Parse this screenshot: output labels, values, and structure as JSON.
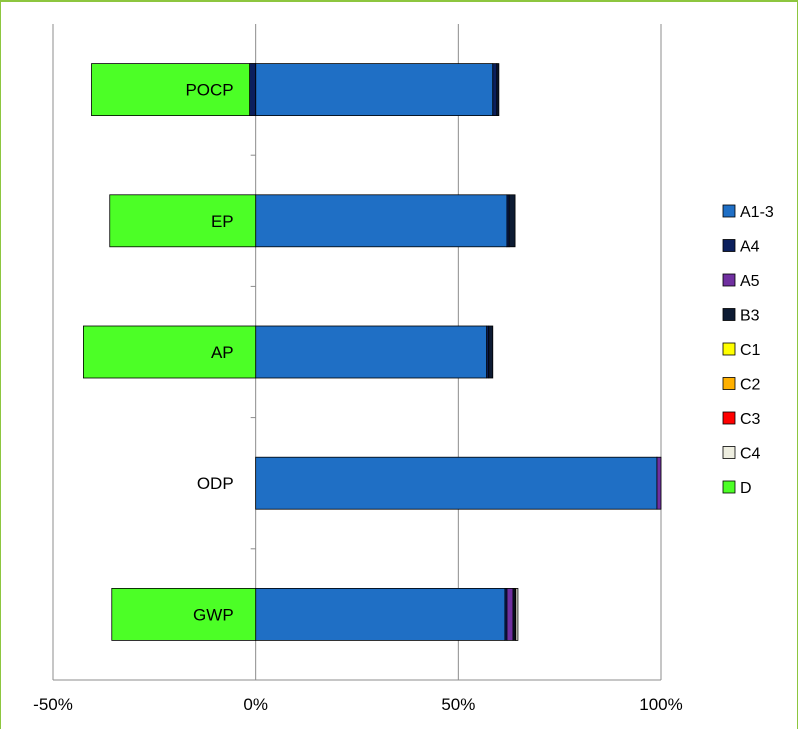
{
  "chart_data": {
    "type": "bar",
    "orientation": "horizontal",
    "stacked": true,
    "categories": [
      "POCP",
      "EP",
      "AP",
      "ODP",
      "GWP"
    ],
    "xlim": [
      -50,
      100
    ],
    "xticks": [
      "-50%",
      "0%",
      "50%",
      "100%"
    ],
    "xtick_values": [
      -50,
      0,
      50,
      100
    ],
    "grid": "vertical major gridlines",
    "legend_position": "right",
    "series": [
      {
        "name": "A1-3",
        "color": "#1f6fc5",
        "values": [
          58.5,
          62.0,
          57.0,
          99.0,
          61.5
        ]
      },
      {
        "name": "A4",
        "color": "#0b1f5c",
        "values": [
          1.0,
          0.5,
          0.5,
          0.0,
          0.5
        ]
      },
      {
        "name": "A5",
        "color": "#7030a0",
        "values": [
          0.0,
          0.0,
          0.0,
          1.0,
          1.5
        ]
      },
      {
        "name": "B3",
        "color": "#0d1b33",
        "values": [
          0.5,
          1.5,
          1.0,
          0.0,
          0.5
        ]
      },
      {
        "name": "C1",
        "color": "#ffff00",
        "values": [
          0.0,
          0.0,
          0.0,
          0.0,
          0.0
        ]
      },
      {
        "name": "C2",
        "color": "#ffb000",
        "values": [
          0.0,
          0.0,
          0.0,
          0.0,
          0.0
        ]
      },
      {
        "name": "C3",
        "color": "#ff0000",
        "values": [
          0.0,
          0.0,
          0.0,
          0.0,
          0.2
        ]
      },
      {
        "name": "C4",
        "color": "#eeeee0",
        "values": [
          0.0,
          0.0,
          0.0,
          0.0,
          0.5
        ]
      },
      {
        "name": "D",
        "color": "#4cff26",
        "values": [
          -40.5,
          -36.0,
          -42.5,
          0.0,
          -35.5
        ]
      }
    ],
    "negative_offsets": {
      "D_extra_on_POCP": {
        "series": "A4",
        "category": "POCP",
        "value": -1.5
      }
    }
  }
}
